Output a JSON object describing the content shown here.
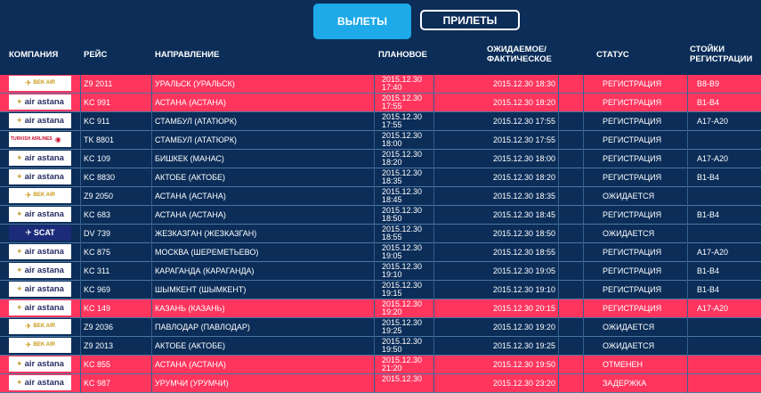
{
  "tabs": {
    "departures": "ВЫЛЕТЫ",
    "arrivals": "ПРИЛЕТЫ"
  },
  "header": {
    "airline": "КОМПАНИЯ",
    "flight": "РЕЙС",
    "destination": "НАПРАВЛЕНИЕ",
    "planned": "ПЛАНОВОЕ",
    "expected_1": "ОЖИДАЕМОЕ/",
    "expected_2": "ФАКТИЧЕСКОЕ",
    "status": "СТАТУС",
    "desks_1": "СТОЙКИ",
    "desks_2": "РЕГИСТРАЦИИ"
  },
  "rows": [
    {
      "logo": "bek",
      "logo_text": "BEK AIR",
      "flight": "Z9 2011",
      "destination": "УРАЛЬСК (УРАЛЬСК)",
      "planned_date": "2015.12.30",
      "planned_time": "17:40",
      "expected": "2015.12.30 18:30",
      "status": "РЕГИСТРАЦИЯ",
      "desks": "B8-B9",
      "highlight": true
    },
    {
      "logo": "astana",
      "logo_text": "air astana",
      "flight": "KC 991",
      "destination": "АСТАНА (АСТАНА)",
      "planned_date": "2015.12.30",
      "planned_time": "17:55",
      "expected": "2015.12.30 18:20",
      "status": "РЕГИСТРАЦИЯ",
      "desks": "B1-B4",
      "highlight": true
    },
    {
      "logo": "astana",
      "logo_text": "air astana",
      "flight": "KC 911",
      "destination": "СТАМБУЛ (АТАТЮРК)",
      "planned_date": "2015.12.30",
      "planned_time": "17:55",
      "expected": "2015.12.30 17:55",
      "status": "РЕГИСТРАЦИЯ",
      "desks": "A17-A20",
      "highlight": false
    },
    {
      "logo": "turkish",
      "logo_text": "TURKISH AIRLINES",
      "flight": "TK 8801",
      "destination": "СТАМБУЛ (АТАТЮРК)",
      "planned_date": "2015.12.30",
      "planned_time": "18:00",
      "expected": "2015.12.30 17:55",
      "status": "РЕГИСТРАЦИЯ",
      "desks": "",
      "highlight": false
    },
    {
      "logo": "astana",
      "logo_text": "air astana",
      "flight": "KC 109",
      "destination": "БИШКЕК (МАНАС)",
      "planned_date": "2015.12.30",
      "planned_time": "18:20",
      "expected": "2015.12.30 18:00",
      "status": "РЕГИСТРАЦИЯ",
      "desks": "A17-A20",
      "highlight": false
    },
    {
      "logo": "astana",
      "logo_text": "air astana",
      "flight": "KC 8830",
      "destination": "АКТОБЕ (АКТОБЕ)",
      "planned_date": "2015.12.30",
      "planned_time": "18:35",
      "expected": "2015.12.30 18:20",
      "status": "РЕГИСТРАЦИЯ",
      "desks": "B1-B4",
      "highlight": false
    },
    {
      "logo": "bek",
      "logo_text": "BEK AIR",
      "flight": "Z9 2050",
      "destination": "АСТАНА (АСТАНА)",
      "planned_date": "2015.12.30",
      "planned_time": "18:45",
      "expected": "2015.12.30 18:35",
      "status": "ОЖИДАЕТСЯ",
      "desks": "",
      "highlight": false
    },
    {
      "logo": "astana",
      "logo_text": "air astana",
      "flight": "KC 683",
      "destination": "АСТАНА (АСТАНА)",
      "planned_date": "2015.12.30",
      "planned_time": "18:50",
      "expected": "2015.12.30 18:45",
      "status": "РЕГИСТРАЦИЯ",
      "desks": "B1-B4",
      "highlight": false
    },
    {
      "logo": "scat",
      "logo_text": "SCAT",
      "flight": "DV 739",
      "destination": "ЖЕЗКАЗГАН (ЖЕЗКАЗГАН)",
      "planned_date": "2015.12.30",
      "planned_time": "18:55",
      "expected": "2015.12.30 18:50",
      "status": "ОЖИДАЕТСЯ",
      "desks": "",
      "highlight": false
    },
    {
      "logo": "astana",
      "logo_text": "air astana",
      "flight": "KC 875",
      "destination": "МОСКВА (ШЕРЕМЕТЬЕВО)",
      "planned_date": "2015.12.30",
      "planned_time": "19:05",
      "expected": "2015.12.30 18:55",
      "status": "РЕГИСТРАЦИЯ",
      "desks": "A17-A20",
      "highlight": false
    },
    {
      "logo": "astana",
      "logo_text": "air astana",
      "flight": "KC 311",
      "destination": "КАРАГАНДА (КАРАГАНДА)",
      "planned_date": "2015.12.30",
      "planned_time": "19:10",
      "expected": "2015.12.30 19:05",
      "status": "РЕГИСТРАЦИЯ",
      "desks": "B1-B4",
      "highlight": false
    },
    {
      "logo": "astana",
      "logo_text": "air astana",
      "flight": "KC 969",
      "destination": "ШЫМКЕНТ (ШЫМКЕНТ)",
      "planned_date": "2015.12.30",
      "planned_time": "19:15",
      "expected": "2015.12.30 19:10",
      "status": "РЕГИСТРАЦИЯ",
      "desks": "B1-B4",
      "highlight": false
    },
    {
      "logo": "astana",
      "logo_text": "air astana",
      "flight": "KC 149",
      "destination": "КАЗАНЬ (КАЗАНЬ)",
      "planned_date": "2015.12.30",
      "planned_time": "19:20",
      "expected": "2015.12.30 20:15",
      "status": "РЕГИСТРАЦИЯ",
      "desks": "A17-A20",
      "highlight": true
    },
    {
      "logo": "bek",
      "logo_text": "BEK AIR",
      "flight": "Z9 2036",
      "destination": "ПАВЛОДАР (ПАВЛОДАР)",
      "planned_date": "2015.12.30",
      "planned_time": "19:25",
      "expected": "2015.12.30 19:20",
      "status": "ОЖИДАЕТСЯ",
      "desks": "",
      "highlight": false
    },
    {
      "logo": "bek",
      "logo_text": "BEK AIR",
      "flight": "Z9 2013",
      "destination": "АКТОБЕ (АКТОБЕ)",
      "planned_date": "2015.12.30",
      "planned_time": "19:50",
      "expected": "2015.12.30 19:25",
      "status": "ОЖИДАЕТСЯ",
      "desks": "",
      "highlight": false
    },
    {
      "logo": "astana",
      "logo_text": "air astana",
      "flight": "KC 855",
      "destination": "АСТАНА (АСТАНА)",
      "planned_date": "2015.12.30",
      "planned_time": "21:20",
      "expected": "2015.12.30 19:50",
      "status": "ОТМЕНЕН",
      "desks": "",
      "highlight": true
    },
    {
      "logo": "astana",
      "logo_text": "air astana",
      "flight": "KC 987",
      "destination": "УРУМЧИ (УРУМЧИ)",
      "planned_date": "2015.12.30",
      "planned_time": "",
      "expected": "2015.12.30 23:20",
      "status": "ЗАДЕРЖКА",
      "desks": "",
      "highlight": true
    }
  ]
}
